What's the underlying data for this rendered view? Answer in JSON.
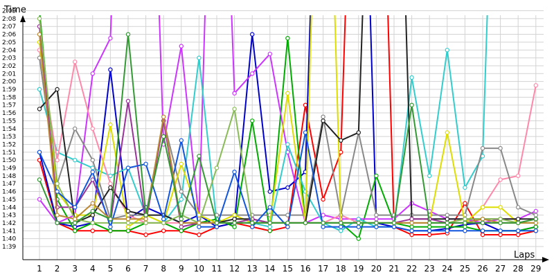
{
  "chart_data": {
    "type": "line",
    "ylabel": "Time",
    "xlabel": "Laps",
    "x": [
      1,
      2,
      3,
      4,
      5,
      6,
      7,
      8,
      9,
      10,
      11,
      12,
      13,
      14,
      15,
      16,
      17,
      18,
      19,
      20,
      21,
      22,
      23,
      24,
      25,
      26,
      27,
      28,
      29
    ],
    "y_ticks": [
      "1:39",
      "1:40",
      "1:41",
      "1:42",
      "1:43",
      "1:44",
      "1:45",
      "1:46",
      "1:47",
      "1:48",
      "1:49",
      "1:50",
      "1:51",
      "1:52",
      "1:53",
      "1:54",
      "1:55",
      "1:56",
      "1:57",
      "1:58",
      "1:59",
      "2:00",
      "2:01",
      "2:02",
      "2:03",
      "2:04",
      "2:05",
      "2:06",
      "2:07",
      "2:08",
      "2:09"
    ],
    "ylim_seconds": [
      99,
      129
    ],
    "grid": true,
    "series": [
      {
        "color": "#ff0000",
        "values": [
          110,
          102,
          101,
          101,
          101,
          101,
          100.5,
          101,
          101,
          100.5,
          101.5,
          102,
          101.5,
          101,
          101.5,
          117,
          105,
          111,
          180,
          180,
          101.5,
          100.5,
          100.5,
          100.7,
          104.5,
          100.5,
          100.5,
          100.5,
          101
        ]
      },
      {
        "color": "#0000cc",
        "values": [
          111,
          102,
          101.5,
          102,
          121.5,
          102.5,
          104,
          103,
          102,
          103,
          101.5,
          102,
          126,
          106,
          106.5,
          108.5,
          180,
          180,
          180,
          102,
          101.5,
          101,
          101,
          101.3,
          101.8,
          102,
          101,
          101,
          101.5
        ]
      },
      {
        "color": "#00aa00",
        "values": [
          129,
          105,
          101,
          102,
          101,
          101,
          102,
          102,
          101,
          102,
          102.5,
          101.5,
          115,
          101,
          125.5,
          102,
          102,
          102,
          100,
          108,
          102,
          101.5,
          101.5,
          101.5,
          101.5,
          101,
          101,
          101,
          101.5
        ]
      },
      {
        "color": "#cc33ff",
        "values": [
          105,
          102,
          103,
          121,
          125.5,
          180,
          180,
          112,
          124.5,
          102.5,
          180,
          118.5,
          121,
          123.5,
          111,
          102,
          103,
          102.5,
          102.5,
          102.5,
          102.5,
          104.5,
          103.5,
          102.5,
          102.5,
          102,
          102.5,
          102.5,
          103.5
        ]
      },
      {
        "color": "#33cccc",
        "values": [
          119,
          111,
          110,
          109,
          108,
          109,
          103,
          102,
          105,
          123,
          102,
          102,
          102,
          101.5,
          112,
          106,
          102,
          101,
          102.5,
          101.5,
          101.5,
          120.5,
          108,
          124,
          106.5,
          110.5,
          180,
          180,
          180
        ]
      },
      {
        "color": "#ff88aa",
        "values": [
          124,
          110,
          122.5,
          114,
          107,
          103,
          102,
          102,
          102,
          102,
          102,
          102,
          102,
          102,
          102,
          102,
          102,
          103,
          102,
          102,
          102,
          102,
          102,
          102,
          102,
          104,
          107.5,
          108,
          119.5
        ]
      },
      {
        "color": "#888888",
        "values": [
          123,
          107,
          114,
          110,
          102.5,
          103,
          103,
          115,
          106,
          103,
          103,
          103,
          103,
          103,
          103,
          103,
          115.5,
          103,
          113.5,
          103,
          103,
          103,
          103,
          103,
          103,
          111.5,
          111.5,
          104,
          103
        ]
      },
      {
        "color": "#dddd00",
        "values": [
          125,
          106,
          103,
          103,
          114.5,
          101.5,
          103,
          102,
          109.5,
          103,
          102,
          103,
          102,
          102,
          118.5,
          102,
          180,
          102,
          102,
          102,
          102,
          102,
          102,
          113.5,
          102,
          104,
          104,
          102,
          102
        ]
      },
      {
        "color": "#222222",
        "values": [
          116.5,
          119,
          102,
          103,
          106.5,
          103.5,
          103,
          103,
          102,
          102,
          102,
          102.5,
          102.5,
          102,
          102,
          102,
          115,
          112.5,
          113.5,
          180,
          180,
          102.5,
          102.5,
          102.5,
          102.5,
          102.5,
          102.5,
          102.5,
          102.5
        ]
      },
      {
        "color": "#993399",
        "values": [
          127,
          104,
          104,
          107.5,
          102,
          117.5,
          102,
          115,
          101.5,
          102,
          102,
          102,
          102.5,
          102,
          102,
          102,
          102,
          102,
          102,
          102,
          102,
          102.5,
          102.5,
          102,
          102,
          102,
          102,
          102,
          102.5
        ]
      },
      {
        "color": "#88bb55",
        "values": [
          128,
          107,
          102.5,
          102,
          102,
          102,
          102,
          102,
          103,
          102,
          109,
          116.5,
          102,
          102,
          102,
          102,
          102,
          102,
          102,
          102,
          102,
          102,
          102,
          102,
          102.5,
          102.5,
          102.5,
          102,
          102
        ]
      },
      {
        "color": "#1155dd",
        "values": [
          111,
          106,
          104,
          108.5,
          101.5,
          109,
          109.5,
          102.5,
          112.5,
          101.5,
          101.5,
          108.5,
          101.5,
          104,
          101.5,
          113.5,
          101.5,
          101.5,
          101.5,
          101.5,
          101.5,
          101,
          101,
          101,
          101,
          101,
          101,
          101,
          101
        ]
      },
      {
        "color": "#bb8833",
        "values": [
          126,
          103,
          102.5,
          104.5,
          102.5,
          102.5,
          102.5,
          115.5,
          102,
          102,
          102,
          102,
          102,
          102,
          102,
          102,
          102,
          102,
          102,
          102,
          102,
          102,
          102,
          102,
          102,
          102.5,
          102,
          102,
          102
        ]
      },
      {
        "color": "#339933",
        "values": [
          107.5,
          102,
          102,
          103.5,
          102.5,
          126,
          103,
          113,
          102.5,
          110.5,
          102,
          102,
          102,
          102,
          102,
          102,
          102,
          102,
          102,
          102,
          102,
          117,
          102,
          102,
          102,
          102,
          102,
          102,
          102.5
        ]
      }
    ]
  }
}
